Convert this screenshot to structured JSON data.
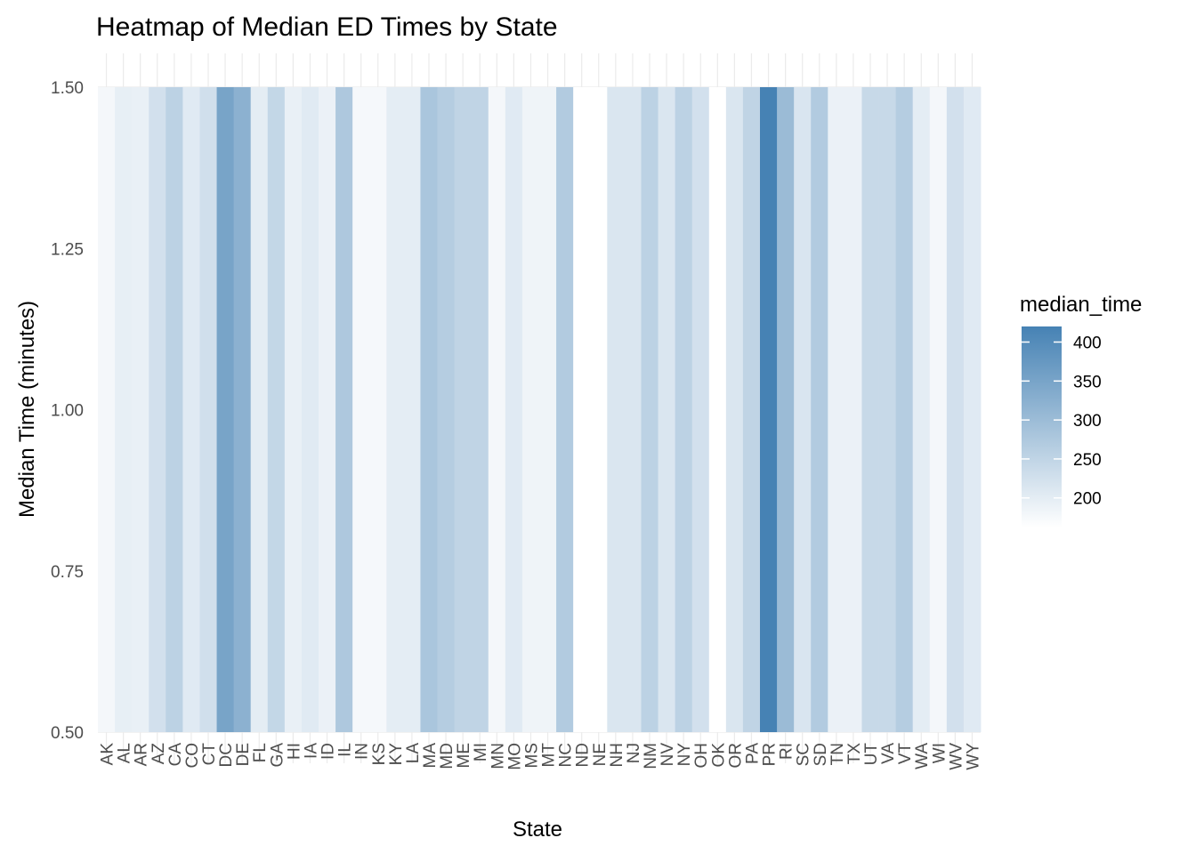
{
  "chart_data": {
    "type": "heatmap",
    "title": "Heatmap of Median ED Times by State",
    "xlabel": "State",
    "ylabel": "Median Time (minutes)",
    "categories": [
      "AK",
      "AL",
      "AR",
      "AZ",
      "CA",
      "CO",
      "CT",
      "DC",
      "DE",
      "FL",
      "GA",
      "HI",
      "IA",
      "ID",
      "IL",
      "IN",
      "KS",
      "KY",
      "LA",
      "MA",
      "MD",
      "ME",
      "MI",
      "MN",
      "MO",
      "MS",
      "MT",
      "NC",
      "ND",
      "NE",
      "NH",
      "NJ",
      "NM",
      "NV",
      "NY",
      "OH",
      "OK",
      "OR",
      "PA",
      "PR",
      "RI",
      "SC",
      "SD",
      "TN",
      "TX",
      "UT",
      "VA",
      "VT",
      "WA",
      "WI",
      "WV",
      "WY"
    ],
    "values": [
      178,
      196,
      192,
      225,
      255,
      205,
      228,
      350,
      322,
      200,
      245,
      193,
      205,
      190,
      275,
      176,
      176,
      200,
      200,
      280,
      265,
      250,
      250,
      178,
      205,
      185,
      185,
      270,
      162,
      162,
      213,
      213,
      255,
      213,
      255,
      225,
      162,
      213,
      250,
      420,
      302,
      215,
      270,
      190,
      190,
      240,
      240,
      265,
      200,
      178,
      225,
      205
    ],
    "y": 1,
    "ylim": [
      0.5,
      1.5
    ],
    "yticks": [
      "1.50",
      "1.25",
      "1.00",
      "0.75",
      "0.50"
    ],
    "ytick_values": [
      1.5,
      1.25,
      1.0,
      0.75,
      0.5
    ],
    "legend": {
      "title": "median_time",
      "placement": "right",
      "labels": [
        "400",
        "350",
        "300",
        "250",
        "200"
      ],
      "label_values": [
        400,
        350,
        300,
        250,
        200
      ],
      "range": [
        162,
        420
      ]
    },
    "colors": {
      "low": "#ffffff",
      "high": "#4682b4",
      "grid": "#ebebeb"
    },
    "grid": true
  }
}
